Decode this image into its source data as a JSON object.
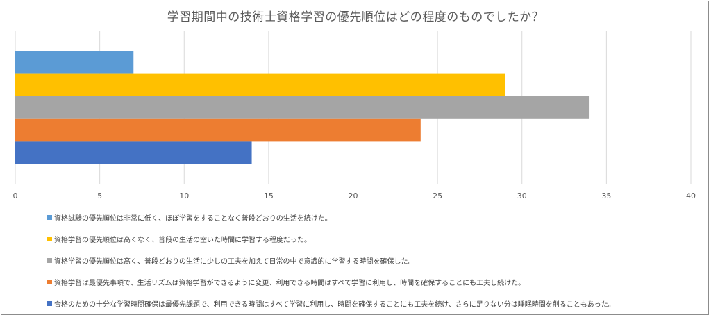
{
  "chart_data": {
    "type": "bar",
    "orientation": "horizontal",
    "title": "学習期間中の技術士資格学習の優先順位はどの程度のものでしたか？",
    "xlim": [
      0,
      40
    ],
    "x_ticks": [
      "0",
      "5",
      "10",
      "15",
      "20",
      "25",
      "30",
      "35",
      "40"
    ],
    "grid": "vertical",
    "legend_position": "bottom",
    "series": [
      {
        "name": "資格試験の優先順位は非常に低く、ほぼ学習をすることなく普段どおりの生活を続けた。",
        "value": 7,
        "color": "#5b9bd5"
      },
      {
        "name": "資格学習の優先順位は高くなく、普段の生活の空いた時間に学習する程度だった。",
        "value": 29,
        "color": "#ffc000"
      },
      {
        "name": "資格学習の優先順位は高く、普段どおりの生活に少しの工夫を加えて日常の中で意識的に学習する時間を確保した。",
        "value": 34,
        "color": "#a5a5a5"
      },
      {
        "name": "資格学習は最優先事項で、生活リズムは資格学習ができるように変更、利用できる時間はすべて学習に利用し、時間を確保することにも工夫し続けた。",
        "value": 24,
        "color": "#ed7d31"
      },
      {
        "name": "合格のための十分な学習時間確保は最優先課題で、利用できる時間はすべて学習に利用し、時間を確保することにも工夫を続け、さらに足りない分は睡眠時間を削ることもあった。",
        "value": 14,
        "color": "#4472c4"
      }
    ]
  }
}
